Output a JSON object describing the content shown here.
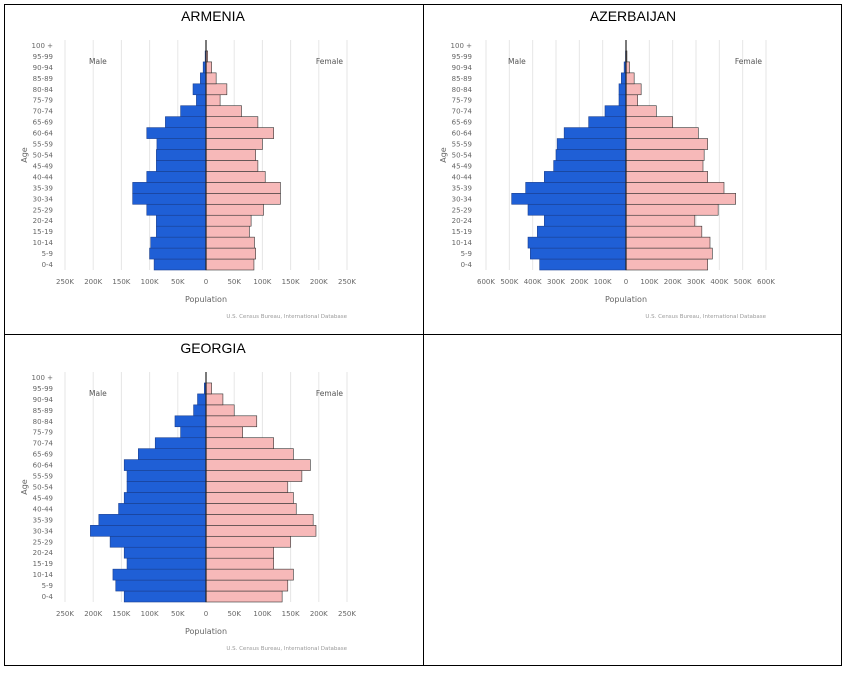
{
  "page": {
    "panels": [
      "ARMENIA",
      "AZERBAIJAN",
      "GEORGIA"
    ]
  },
  "colors": {
    "male": "#1f5fd6",
    "female": "#f7b9b9",
    "grid": "#e6e6e6",
    "label": "#666666",
    "source": "#9a9a9a"
  },
  "chart_data": [
    {
      "type": "bar",
      "title": "ARMENIA",
      "orientation": "horizontal-population-pyramid",
      "categories": [
        "0-4",
        "5-9",
        "10-14",
        "15-19",
        "20-24",
        "25-29",
        "30-34",
        "35-39",
        "40-44",
        "45-49",
        "50-54",
        "55-59",
        "60-64",
        "65-69",
        "70-74",
        "75-79",
        "80-84",
        "85-89",
        "90-94",
        "95-99",
        "100 +"
      ],
      "series": [
        {
          "name": "Male",
          "values": [
            92000,
            100000,
            98000,
            88000,
            88000,
            105000,
            130000,
            130000,
            105000,
            88000,
            88000,
            87000,
            105000,
            72000,
            45000,
            17000,
            23000,
            10000,
            5000,
            1500,
            0
          ]
        },
        {
          "name": "Female",
          "values": [
            85000,
            88000,
            86000,
            77000,
            80000,
            102000,
            132000,
            132000,
            105000,
            92000,
            88000,
            100000,
            120000,
            92000,
            63000,
            25000,
            37000,
            18000,
            10000,
            3000,
            0
          ]
        }
      ],
      "xlabel": "Population",
      "ylabel": "Age",
      "xtick_labels": [
        "250K",
        "200K",
        "150K",
        "100K",
        "50K",
        "0",
        "50K",
        "100K",
        "150K",
        "200K",
        "250K"
      ],
      "xlim": [
        -250000,
        250000
      ],
      "legend": {
        "left": "Male",
        "right": "Female"
      },
      "source": "U.S. Census Bureau, International Database",
      "grid": true
    },
    {
      "type": "bar",
      "title": "AZERBAIJAN",
      "orientation": "horizontal-population-pyramid",
      "categories": [
        "0-4",
        "5-9",
        "10-14",
        "15-19",
        "20-24",
        "25-29",
        "30-34",
        "35-39",
        "40-44",
        "45-49",
        "50-54",
        "55-59",
        "60-64",
        "65-69",
        "70-74",
        "75-79",
        "80-84",
        "85-89",
        "90-94",
        "95-99",
        "100 +"
      ],
      "series": [
        {
          "name": "Male",
          "values": [
            370000,
            410000,
            420000,
            380000,
            350000,
            420000,
            490000,
            430000,
            350000,
            310000,
            300000,
            295000,
            265000,
            160000,
            90000,
            30000,
            30000,
            20000,
            8000,
            2000,
            0
          ]
        },
        {
          "name": "Female",
          "values": [
            350000,
            370000,
            360000,
            325000,
            295000,
            395000,
            470000,
            420000,
            350000,
            330000,
            335000,
            350000,
            310000,
            200000,
            130000,
            50000,
            65000,
            35000,
            15000,
            4000,
            0
          ]
        }
      ],
      "xlabel": "Population",
      "ylabel": "Age",
      "xtick_labels": [
        "600K",
        "500K",
        "400K",
        "300K",
        "200K",
        "100K",
        "0",
        "100K",
        "200K",
        "300K",
        "400K",
        "500K",
        "600K"
      ],
      "xlim": [
        -600000,
        600000
      ],
      "legend": {
        "left": "Male",
        "right": "Female"
      },
      "source": "U.S. Census Bureau, International Database",
      "grid": true
    },
    {
      "type": "bar",
      "title": "GEORGIA",
      "orientation": "horizontal-population-pyramid",
      "categories": [
        "0-4",
        "5-9",
        "10-14",
        "15-19",
        "20-24",
        "25-29",
        "30-34",
        "35-39",
        "40-44",
        "45-49",
        "50-54",
        "55-59",
        "60-64",
        "65-69",
        "70-74",
        "75-79",
        "80-84",
        "85-89",
        "90-94",
        "95-99",
        "100 +"
      ],
      "series": [
        {
          "name": "Male",
          "values": [
            145000,
            160000,
            165000,
            140000,
            145000,
            170000,
            205000,
            190000,
            155000,
            145000,
            140000,
            140000,
            145000,
            120000,
            90000,
            45000,
            55000,
            22000,
            15000,
            3000,
            0
          ]
        },
        {
          "name": "Female",
          "values": [
            135000,
            145000,
            155000,
            120000,
            120000,
            150000,
            195000,
            190000,
            160000,
            155000,
            145000,
            170000,
            185000,
            155000,
            120000,
            65000,
            90000,
            50000,
            30000,
            10000,
            0
          ]
        }
      ],
      "xlabel": "Population",
      "ylabel": "Age",
      "xtick_labels": [
        "250K",
        "200K",
        "150K",
        "100K",
        "50K",
        "0",
        "50K",
        "100K",
        "150K",
        "200K",
        "250K"
      ],
      "xlim": [
        -250000,
        250000
      ],
      "legend": {
        "left": "Male",
        "right": "Female"
      },
      "source": "U.S. Census Bureau, International Database",
      "grid": true
    }
  ]
}
